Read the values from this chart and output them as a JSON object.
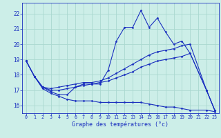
{
  "xlabel": "Graphe des températures (°c)",
  "bg_color": "#cceee8",
  "line_color": "#1a2fbf",
  "grid_color": "#aad8d0",
  "xlim": [
    -0.5,
    23.5
  ],
  "ylim": [
    15.5,
    22.7
  ],
  "yticks": [
    16,
    17,
    18,
    19,
    20,
    21,
    22
  ],
  "xticks": [
    0,
    1,
    2,
    3,
    4,
    5,
    6,
    7,
    8,
    9,
    10,
    11,
    12,
    13,
    14,
    15,
    16,
    17,
    18,
    19,
    20,
    21,
    22,
    23
  ],
  "line1_x": [
    0,
    1,
    2,
    3,
    4,
    5,
    6,
    7,
    8,
    9,
    10,
    11,
    12,
    13,
    14,
    15,
    16,
    17,
    18,
    19,
    20,
    22,
    23
  ],
  "line1_y": [
    18.9,
    17.9,
    17.2,
    16.9,
    16.7,
    16.7,
    17.2,
    17.4,
    17.4,
    17.4,
    18.3,
    20.2,
    21.1,
    21.1,
    22.2,
    21.1,
    21.7,
    20.8,
    20.0,
    20.2,
    19.4,
    17.0,
    15.7
  ],
  "line2_x": [
    0,
    1,
    2,
    3,
    4,
    5,
    6,
    7,
    8,
    9,
    10,
    11,
    12,
    13,
    14,
    15,
    16,
    17,
    18,
    19,
    20,
    22,
    23
  ],
  "line2_y": [
    18.9,
    17.9,
    17.2,
    17.1,
    17.2,
    17.3,
    17.4,
    17.5,
    17.5,
    17.6,
    17.8,
    18.1,
    18.4,
    18.7,
    19.0,
    19.3,
    19.5,
    19.6,
    19.7,
    19.9,
    20.0,
    17.0,
    15.7
  ],
  "line3_x": [
    0,
    1,
    2,
    3,
    4,
    5,
    6,
    7,
    8,
    9,
    10,
    11,
    12,
    13,
    14,
    15,
    16,
    17,
    18,
    19,
    20,
    22,
    23
  ],
  "line3_y": [
    18.9,
    17.9,
    17.2,
    17.0,
    17.0,
    17.1,
    17.2,
    17.3,
    17.4,
    17.5,
    17.6,
    17.8,
    18.0,
    18.2,
    18.5,
    18.7,
    18.9,
    19.0,
    19.1,
    19.2,
    19.4,
    17.0,
    15.7
  ],
  "line4_x": [
    0,
    1,
    2,
    3,
    4,
    5,
    6,
    7,
    8,
    9,
    10,
    11,
    12,
    13,
    14,
    15,
    16,
    17,
    18,
    19,
    20,
    22,
    23
  ],
  "line4_y": [
    18.9,
    17.9,
    17.1,
    16.8,
    16.6,
    16.4,
    16.3,
    16.3,
    16.3,
    16.2,
    16.2,
    16.2,
    16.2,
    16.2,
    16.2,
    16.1,
    16.0,
    15.9,
    15.9,
    15.8,
    15.7,
    15.7,
    15.6
  ]
}
